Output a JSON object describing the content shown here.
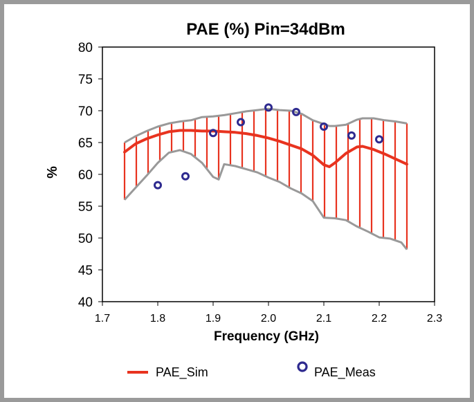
{
  "chart_data": {
    "type": "line",
    "title": "PAE (%) Pin=34dBm",
    "xlabel": "Frequency (GHz)",
    "ylabel": "%",
    "xlim": [
      1.7,
      2.3
    ],
    "ylim": [
      40,
      80
    ],
    "xticks": [
      1.7,
      1.8,
      1.9,
      2.0,
      2.1,
      2.2,
      2.3
    ],
    "xtick_labels": [
      "1.7",
      "1.8",
      "1.9",
      "2.0",
      "2.1",
      "2.2",
      "2.3"
    ],
    "yticks": [
      40,
      45,
      50,
      55,
      60,
      65,
      70,
      75,
      80
    ],
    "ytick_labels": [
      "40",
      "45",
      "50",
      "55",
      "60",
      "65",
      "70",
      "75",
      "80"
    ],
    "grid": false,
    "legend_position": "bottom",
    "series": [
      {
        "name": "PAE_Sim",
        "kind": "line",
        "color": "#e8331f",
        "x": [
          1.74,
          1.76,
          1.78,
          1.8,
          1.82,
          1.84,
          1.86,
          1.88,
          1.9,
          1.92,
          1.94,
          1.96,
          1.98,
          2.0,
          2.02,
          2.04,
          2.06,
          2.08,
          2.1,
          2.11,
          2.12,
          2.14,
          2.16,
          2.17,
          2.19,
          2.21,
          2.23,
          2.25
        ],
        "y": [
          63.5,
          64.8,
          65.6,
          66.2,
          66.7,
          66.9,
          66.9,
          66.8,
          66.8,
          66.7,
          66.6,
          66.4,
          66.1,
          65.7,
          65.2,
          64.6,
          64.0,
          63.0,
          61.5,
          61.2,
          61.8,
          63.3,
          64.3,
          64.4,
          63.9,
          63.2,
          62.4,
          61.6
        ]
      },
      {
        "name": "PAE_Sim upper bound",
        "kind": "envelope",
        "color": "#999999",
        "x": [
          1.74,
          1.76,
          1.78,
          1.8,
          1.82,
          1.84,
          1.86,
          1.88,
          1.9,
          1.92,
          1.94,
          1.96,
          1.98,
          2.0,
          2.02,
          2.04,
          2.06,
          2.08,
          2.1,
          2.11,
          2.12,
          2.14,
          2.16,
          2.17,
          2.19,
          2.21,
          2.23,
          2.25
        ],
        "y": [
          65.0,
          66.0,
          66.8,
          67.5,
          68.0,
          68.3,
          68.5,
          69.0,
          69.1,
          69.3,
          69.6,
          69.9,
          70.1,
          70.3,
          70.1,
          70.0,
          69.5,
          68.5,
          67.9,
          67.6,
          67.6,
          67.8,
          68.6,
          68.8,
          68.8,
          68.5,
          68.3,
          68.0
        ]
      },
      {
        "name": "PAE_Sim lower bound",
        "kind": "envelope",
        "color": "#999999",
        "x": [
          1.74,
          1.76,
          1.78,
          1.8,
          1.82,
          1.84,
          1.86,
          1.88,
          1.9,
          1.91,
          1.92,
          1.94,
          1.96,
          1.98,
          2.0,
          2.02,
          2.04,
          2.06,
          2.08,
          2.1,
          2.12,
          2.14,
          2.16,
          2.18,
          2.2,
          2.22,
          2.24,
          2.25
        ],
        "y": [
          56.0,
          57.9,
          59.8,
          61.8,
          63.4,
          63.8,
          63.2,
          61.8,
          59.6,
          59.2,
          61.6,
          61.3,
          60.8,
          60.3,
          59.5,
          58.8,
          57.8,
          57.0,
          55.8,
          53.2,
          53.1,
          52.8,
          51.8,
          51.0,
          50.1,
          49.9,
          49.3,
          48.2
        ]
      },
      {
        "name": "PAE_Meas",
        "kind": "scatter",
        "color": "#2e2a8f",
        "x": [
          1.8,
          1.85,
          1.9,
          1.95,
          2.0,
          2.05,
          2.1,
          2.15,
          2.2
        ],
        "y": [
          58.3,
          59.7,
          66.5,
          68.2,
          70.5,
          69.8,
          67.5,
          66.1,
          65.5
        ]
      }
    ],
    "legend": [
      {
        "label": "PAE_Sim",
        "marker": "line",
        "color": "#e8331f"
      },
      {
        "label": "PAE_Meas",
        "marker": "circle",
        "color": "#2e2a8f"
      }
    ]
  }
}
